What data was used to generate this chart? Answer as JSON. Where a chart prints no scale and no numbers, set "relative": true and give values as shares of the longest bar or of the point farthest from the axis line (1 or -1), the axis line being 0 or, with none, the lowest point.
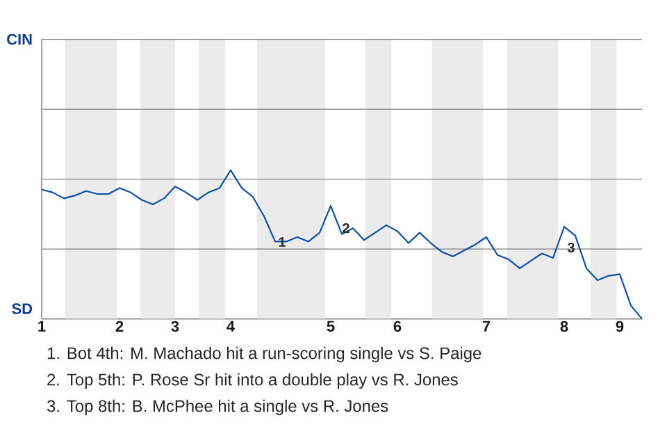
{
  "chart_data": {
    "type": "line",
    "relative": true,
    "categories": [
      "1",
      null,
      null,
      null,
      null,
      null,
      null,
      "2",
      null,
      null,
      null,
      null,
      "3",
      null,
      null,
      null,
      null,
      "4",
      null,
      null,
      null,
      null,
      null,
      null,
      null,
      null,
      "5",
      null,
      null,
      null,
      null,
      null,
      "6",
      null,
      null,
      null,
      null,
      null,
      null,
      null,
      "7",
      null,
      null,
      null,
      null,
      null,
      null,
      "8",
      null,
      null,
      null,
      null,
      "9",
      null,
      null
    ],
    "marker": "none",
    "line_style": "solid",
    "ref_lines": [
      {
        "axis": "y",
        "value": 0.47,
        "color": "#808080"
      },
      {
        "axis": "y",
        "value": 0.94,
        "color": "#808080"
      }
    ],
    "series": [
      {
        "color": "#0d4fa3",
        "values": [
          0.87,
          0.85,
          0.81,
          0.83,
          0.86,
          0.84,
          0.84,
          0.88,
          0.85,
          0.8,
          0.77,
          0.81,
          0.89,
          0.85,
          0.8,
          0.85,
          0.88,
          1,
          0.88,
          0.82,
          0.69,
          0.52,
          0.52,
          0.55,
          0.52,
          0.58,
          0.76,
          0.57,
          0.61,
          0.53,
          0.58,
          0.63,
          0.59,
          0.51,
          0.58,
          0.51,
          0.45,
          0.42,
          0.46,
          0.5,
          0.55,
          0.43,
          0.4,
          0.34,
          0.39,
          0.44,
          0.41,
          0.62,
          0.56,
          0.34,
          0.26,
          0.29,
          0.3,
          0.09,
          0
        ]
      }
    ],
    "annotations": [
      "CIN",
      "SD",
      "1",
      "2",
      "3",
      "1. Bot 4th: M. Machado hit a run-scoring single vs S. Paige",
      "2. Top 5th: P. Rose Sr hit into a double play vs R. Jones",
      "3. Top 8th: B. McPhee hit a single vs R. Jones"
    ]
  }
}
